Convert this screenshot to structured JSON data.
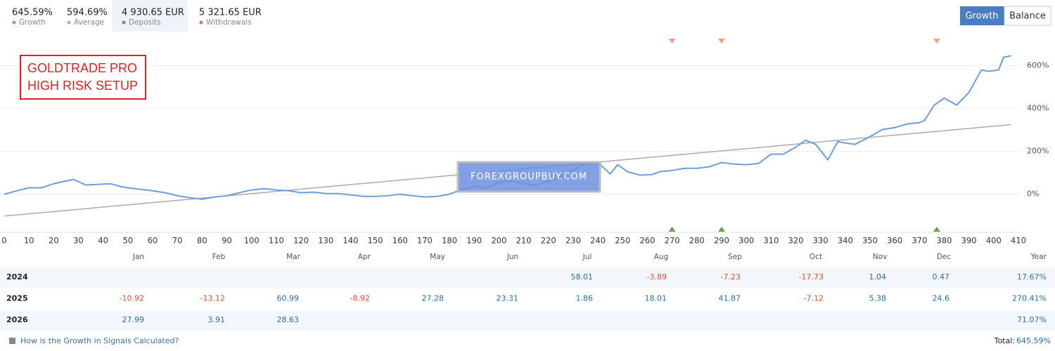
{
  "stats": [
    {
      "value": "645.59%",
      "label": "Growth",
      "color": "#6a9fdc"
    },
    {
      "value": "594.69%",
      "label": "Average",
      "color": "#aaaaaa"
    },
    {
      "value": "4 930.65 EUR",
      "label": "Deposits",
      "color": "#5cab3c"
    },
    {
      "value": "5 321.65 EUR",
      "label": "Withdrawals",
      "color": "#e8735a"
    }
  ],
  "buttons": [
    "Growth",
    "Balance"
  ],
  "annotation": [
    "GOLDTRADE PRO",
    "HIGH RISK SETUP"
  ],
  "watermark": "FOREXGROUPBUY.COM",
  "chart_data": {
    "type": "line",
    "xlim": [
      0,
      410
    ],
    "xticks": [
      0,
      10,
      20,
      30,
      40,
      50,
      60,
      70,
      80,
      90,
      100,
      110,
      120,
      130,
      140,
      150,
      160,
      170,
      180,
      190,
      200,
      210,
      220,
      230,
      240,
      250,
      260,
      270,
      280,
      290,
      300,
      310,
      320,
      330,
      340,
      350,
      360,
      370,
      380,
      390,
      400,
      410
    ],
    "ylim": [
      -178,
      710
    ],
    "yticks": [
      {
        "value": 0,
        "label": "0%"
      },
      {
        "value": 200,
        "label": "200%"
      },
      {
        "value": 400,
        "label": "400%"
      },
      {
        "value": 600,
        "label": "600%"
      }
    ],
    "grid": true,
    "series": [
      {
        "name": "Growth",
        "color": "#6a9fdc",
        "x": [
          0,
          5,
          10,
          15,
          20,
          25,
          28,
          30,
          33,
          38,
          43,
          47,
          50,
          55,
          60,
          65,
          70,
          75,
          80,
          85,
          90,
          95,
          100,
          105,
          110,
          115,
          120,
          125,
          130,
          135,
          140,
          145,
          150,
          155,
          160,
          165,
          170,
          175,
          180,
          185,
          190,
          195,
          200,
          205,
          210,
          215,
          220,
          225,
          230,
          235,
          240,
          245,
          248,
          252,
          257,
          262,
          265,
          270,
          275,
          280,
          285,
          290,
          295,
          300,
          305,
          310,
          315,
          320,
          324,
          328,
          333,
          337,
          340,
          344,
          350,
          355,
          360,
          365,
          370,
          372,
          376,
          380,
          385,
          390,
          395,
          398,
          402,
          404,
          407
        ],
        "values": [
          0,
          16,
          30,
          30,
          49,
          62,
          69,
          59,
          43,
          46,
          49,
          36,
          30,
          23,
          16,
          7,
          -7,
          -16,
          -23,
          -13,
          -7,
          7,
          20,
          26,
          20,
          16,
          7,
          10,
          3,
          3,
          -3,
          -10,
          -10,
          -7,
          0,
          -7,
          -13,
          -10,
          0,
          23,
          36,
          30,
          56,
          62,
          49,
          43,
          59,
          82,
          111,
          144,
          148,
          95,
          138,
          105,
          89,
          92,
          105,
          111,
          121,
          121,
          128,
          148,
          141,
          138,
          144,
          187,
          187,
          220,
          252,
          233,
          161,
          246,
          239,
          233,
          269,
          302,
          311,
          328,
          334,
          344,
          416,
          449,
          416,
          475,
          580,
          574,
          580,
          639,
          646
        ]
      },
      {
        "name": "Average",
        "color": "#aaaaaa",
        "x": [
          0,
          407
        ],
        "values": [
          -102,
          325
        ]
      }
    ],
    "deposits": {
      "color": "#5cab3c",
      "x": [
        270,
        290,
        377
      ]
    },
    "withdrawals": {
      "color": "#f0a08a",
      "x": [
        270,
        290,
        377
      ]
    }
  },
  "table": {
    "header": [
      "Jan",
      "Feb",
      "Mar",
      "Apr",
      "May",
      "Jun",
      "Jul",
      "Aug",
      "Sep",
      "Oct",
      "Nov",
      "Dec",
      "Year"
    ],
    "rows": [
      {
        "year": "2024",
        "cells": [
          null,
          null,
          null,
          null,
          null,
          null,
          58.01,
          -3.89,
          -7.23,
          -17.73,
          1.04,
          0.47
        ],
        "total": "17.67%"
      },
      {
        "year": "2025",
        "cells": [
          -10.92,
          -13.12,
          60.99,
          -8.92,
          27.28,
          23.31,
          1.86,
          18.01,
          41.87,
          -7.12,
          5.38,
          24.6
        ],
        "total": "270.41%"
      },
      {
        "year": "2026",
        "cells": [
          27.99,
          3.91,
          28.63,
          null,
          null,
          null,
          null,
          null,
          null,
          null,
          null,
          null
        ],
        "total": "71.07%"
      }
    ]
  },
  "footer": {
    "link": "How is the Growth in Signals Calculated?",
    "total_label": "Total:",
    "total_value": "645.59%"
  }
}
